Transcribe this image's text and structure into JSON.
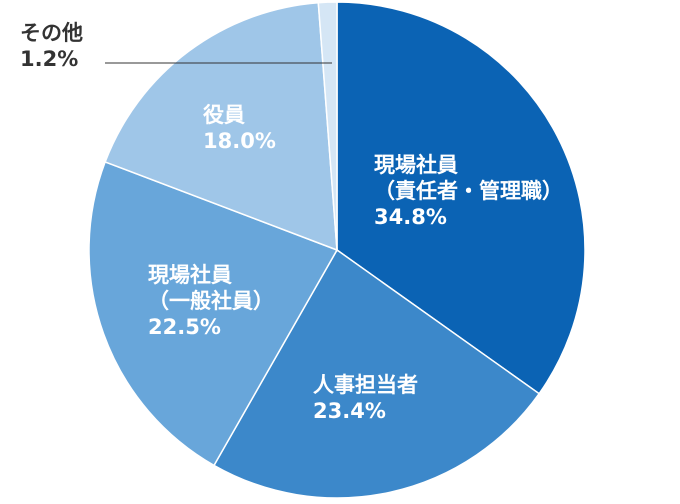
{
  "chart_data": {
    "type": "pie",
    "title": "",
    "slices": [
      {
        "label_lines": [
          "現場社員",
          "（責任者・管理職）"
        ],
        "value": 34.8,
        "value_text": "34.8%",
        "color": "#0b63b4",
        "text_color": "#ffffff"
      },
      {
        "label_lines": [
          "人事担当者"
        ],
        "value": 23.4,
        "value_text": "23.4%",
        "color": "#3c88ca",
        "text_color": "#ffffff"
      },
      {
        "label_lines": [
          "現場社員",
          "（一般社員）"
        ],
        "value": 22.5,
        "value_text": "22.5%",
        "color": "#68a6da",
        "text_color": "#ffffff"
      },
      {
        "label_lines": [
          "役員"
        ],
        "value": 18.0,
        "value_text": "18.0%",
        "color": "#9fc6e8",
        "text_color": "#ffffff"
      },
      {
        "label_lines": [
          "その他"
        ],
        "value": 1.2,
        "value_text": "1.2%",
        "color": "#d5e6f5",
        "text_color": "#333333"
      }
    ],
    "start_angle": "12 o'clock",
    "direction": "clockwise"
  }
}
